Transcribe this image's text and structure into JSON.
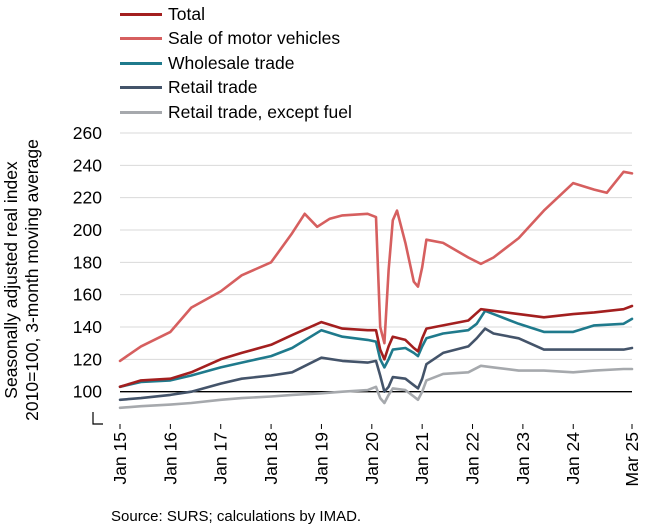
{
  "chart_data": {
    "type": "line",
    "ylabel_lines": [
      "Seasonally adjusted real index",
      "2010=100, 3-month moving average"
    ],
    "ylim": [
      80,
      260
    ],
    "yticks": [
      100,
      120,
      140,
      160,
      180,
      200,
      220,
      240,
      260
    ],
    "baseline": 100,
    "grid": true,
    "legend_position": "top",
    "xtick_labels": [
      "Jan 15",
      "Jan 16",
      "Jan 17",
      "Jan 18",
      "Jan 19",
      "Jan 20",
      "Jan 21",
      "Jan 22",
      "Jan 23",
      "Jan 24",
      "Mar 25"
    ],
    "xtick_dates": [
      "2015-01",
      "2016-01",
      "2017-01",
      "2018-01",
      "2019-01",
      "2020-01",
      "2021-01",
      "2022-01",
      "2023-01",
      "2024-01",
      "2025-03"
    ],
    "series": [
      {
        "name": "Retail trade, except fuel",
        "color": "#A6A9AD",
        "points": [
          [
            "2015-01",
            90
          ],
          [
            "2015-06",
            91
          ],
          [
            "2016-01",
            92
          ],
          [
            "2016-06",
            93
          ],
          [
            "2017-01",
            95
          ],
          [
            "2017-06",
            96
          ],
          [
            "2018-01",
            97
          ],
          [
            "2018-06",
            98
          ],
          [
            "2019-01",
            99
          ],
          [
            "2019-06",
            100
          ],
          [
            "2019-12",
            101
          ],
          [
            "2020-02",
            103
          ],
          [
            "2020-03",
            96
          ],
          [
            "2020-04",
            93
          ],
          [
            "2020-05",
            98
          ],
          [
            "2020-06",
            102
          ],
          [
            "2020-09",
            101
          ],
          [
            "2020-11",
            97
          ],
          [
            "2020-12",
            95
          ],
          [
            "2021-01",
            100
          ],
          [
            "2021-02",
            107
          ],
          [
            "2021-06",
            111
          ],
          [
            "2021-12",
            112
          ],
          [
            "2022-03",
            116
          ],
          [
            "2022-06",
            115
          ],
          [
            "2022-12",
            113
          ],
          [
            "2023-06",
            113
          ],
          [
            "2024-01",
            112
          ],
          [
            "2024-06",
            113
          ],
          [
            "2025-01",
            114
          ],
          [
            "2025-03",
            114
          ]
        ]
      },
      {
        "name": "Retail trade",
        "color": "#44546A",
        "points": [
          [
            "2015-01",
            95
          ],
          [
            "2015-06",
            96
          ],
          [
            "2016-01",
            98
          ],
          [
            "2016-06",
            100
          ],
          [
            "2017-01",
            105
          ],
          [
            "2017-06",
            108
          ],
          [
            "2018-01",
            110
          ],
          [
            "2018-06",
            112
          ],
          [
            "2019-01",
            121
          ],
          [
            "2019-06",
            119
          ],
          [
            "2019-12",
            118
          ],
          [
            "2020-02",
            119
          ],
          [
            "2020-03",
            110
          ],
          [
            "2020-04",
            100
          ],
          [
            "2020-05",
            103
          ],
          [
            "2020-06",
            109
          ],
          [
            "2020-09",
            108
          ],
          [
            "2020-11",
            104
          ],
          [
            "2020-12",
            102
          ],
          [
            "2021-01",
            108
          ],
          [
            "2021-02",
            117
          ],
          [
            "2021-06",
            124
          ],
          [
            "2021-12",
            128
          ],
          [
            "2022-02",
            133
          ],
          [
            "2022-04",
            139
          ],
          [
            "2022-06",
            136
          ],
          [
            "2022-12",
            133
          ],
          [
            "2023-06",
            126
          ],
          [
            "2024-01",
            126
          ],
          [
            "2024-06",
            126
          ],
          [
            "2025-01",
            126
          ],
          [
            "2025-03",
            127
          ]
        ]
      },
      {
        "name": "Wholesale trade",
        "color": "#1F7A8C",
        "points": [
          [
            "2015-01",
            103
          ],
          [
            "2015-06",
            106
          ],
          [
            "2016-01",
            107
          ],
          [
            "2016-06",
            110
          ],
          [
            "2017-01",
            115
          ],
          [
            "2017-06",
            118
          ],
          [
            "2018-01",
            122
          ],
          [
            "2018-06",
            127
          ],
          [
            "2019-01",
            138
          ],
          [
            "2019-06",
            134
          ],
          [
            "2019-12",
            132
          ],
          [
            "2020-02",
            131
          ],
          [
            "2020-03",
            120
          ],
          [
            "2020-04",
            115
          ],
          [
            "2020-05",
            120
          ],
          [
            "2020-06",
            126
          ],
          [
            "2020-09",
            127
          ],
          [
            "2020-11",
            124
          ],
          [
            "2020-12",
            122
          ],
          [
            "2021-01",
            128
          ],
          [
            "2021-02",
            133
          ],
          [
            "2021-06",
            136
          ],
          [
            "2021-12",
            138
          ],
          [
            "2022-02",
            142
          ],
          [
            "2022-04",
            150
          ],
          [
            "2022-06",
            148
          ],
          [
            "2022-12",
            142
          ],
          [
            "2023-06",
            137
          ],
          [
            "2024-01",
            137
          ],
          [
            "2024-06",
            141
          ],
          [
            "2025-01",
            142
          ],
          [
            "2025-03",
            145
          ]
        ]
      },
      {
        "name": "Sale of motor vehicles",
        "color": "#D65F5F",
        "points": [
          [
            "2015-01",
            119
          ],
          [
            "2015-06",
            128
          ],
          [
            "2016-01",
            137
          ],
          [
            "2016-06",
            152
          ],
          [
            "2017-01",
            162
          ],
          [
            "2017-06",
            172
          ],
          [
            "2018-01",
            180
          ],
          [
            "2018-06",
            198
          ],
          [
            "2018-09",
            210
          ],
          [
            "2018-12",
            202
          ],
          [
            "2019-03",
            207
          ],
          [
            "2019-06",
            209
          ],
          [
            "2019-12",
            210
          ],
          [
            "2020-02",
            208
          ],
          [
            "2020-03",
            140
          ],
          [
            "2020-04",
            130
          ],
          [
            "2020-05",
            175
          ],
          [
            "2020-06",
            206
          ],
          [
            "2020-07",
            212
          ],
          [
            "2020-09",
            192
          ],
          [
            "2020-11",
            168
          ],
          [
            "2020-12",
            165
          ],
          [
            "2021-01",
            177
          ],
          [
            "2021-02",
            194
          ],
          [
            "2021-06",
            192
          ],
          [
            "2021-12",
            183
          ],
          [
            "2022-03",
            179
          ],
          [
            "2022-06",
            183
          ],
          [
            "2022-12",
            195
          ],
          [
            "2023-06",
            212
          ],
          [
            "2024-01",
            229
          ],
          [
            "2024-06",
            225
          ],
          [
            "2024-09",
            223
          ],
          [
            "2025-01",
            236
          ],
          [
            "2025-03",
            235
          ]
        ]
      },
      {
        "name": "Total",
        "color": "#A31F1F",
        "points": [
          [
            "2015-01",
            103
          ],
          [
            "2015-06",
            107
          ],
          [
            "2016-01",
            108
          ],
          [
            "2016-06",
            112
          ],
          [
            "2017-01",
            120
          ],
          [
            "2017-06",
            124
          ],
          [
            "2018-01",
            129
          ],
          [
            "2018-06",
            135
          ],
          [
            "2019-01",
            143
          ],
          [
            "2019-06",
            139
          ],
          [
            "2019-12",
            138
          ],
          [
            "2020-02",
            138
          ],
          [
            "2020-03",
            126
          ],
          [
            "2020-04",
            120
          ],
          [
            "2020-05",
            128
          ],
          [
            "2020-06",
            134
          ],
          [
            "2020-09",
            132
          ],
          [
            "2020-11",
            127
          ],
          [
            "2020-12",
            125
          ],
          [
            "2021-01",
            133
          ],
          [
            "2021-02",
            139
          ],
          [
            "2021-06",
            141
          ],
          [
            "2021-12",
            144
          ],
          [
            "2022-03",
            151
          ],
          [
            "2022-06",
            150
          ],
          [
            "2022-12",
            148
          ],
          [
            "2023-06",
            146
          ],
          [
            "2024-01",
            148
          ],
          [
            "2024-06",
            149
          ],
          [
            "2025-01",
            151
          ],
          [
            "2025-03",
            153
          ]
        ]
      }
    ]
  },
  "legend_order": [
    "Total",
    "Sale of motor vehicles",
    "Wholesale trade",
    "Retail trade",
    "Retail trade, except fuel"
  ],
  "source": "Source: SURS; calculations by IMAD."
}
